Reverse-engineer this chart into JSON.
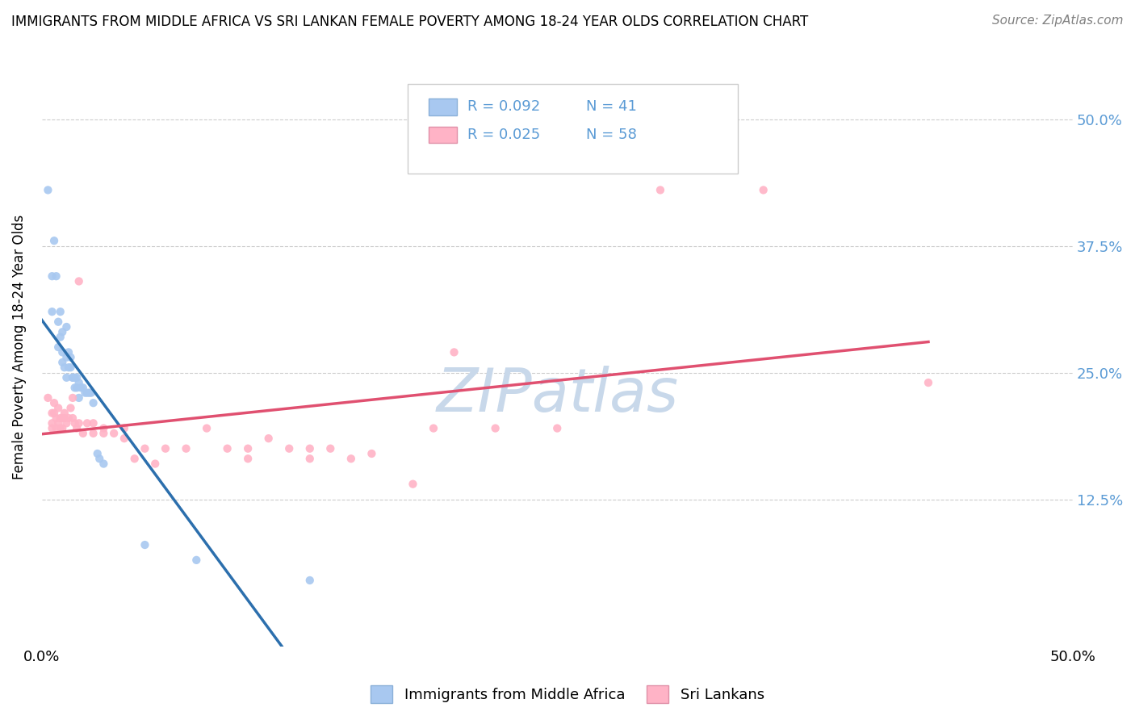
{
  "title": "IMMIGRANTS FROM MIDDLE AFRICA VS SRI LANKAN FEMALE POVERTY AMONG 18-24 YEAR OLDS CORRELATION CHART",
  "source": "Source: ZipAtlas.com",
  "ylabel": "Female Poverty Among 18-24 Year Olds",
  "xlim": [
    0.0,
    0.5
  ],
  "ylim": [
    -0.02,
    0.57
  ],
  "xtick_positions": [
    0.0,
    0.5
  ],
  "xtick_labels": [
    "0.0%",
    "50.0%"
  ],
  "ytick_values": [
    0.125,
    0.25,
    0.375,
    0.5
  ],
  "ytick_labels": [
    "12.5%",
    "25.0%",
    "37.5%",
    "50.0%"
  ],
  "right_ytick_color": "#5b9bd5",
  "color_blue": "#a8c8f0",
  "color_pink": "#ffb3c6",
  "trendline_blue_color": "#2c6fad",
  "trendline_pink_color": "#e05070",
  "trendline_dashed_color": "#a0b8cc",
  "watermark_color": "#c8d8ea",
  "background_color": "#ffffff",
  "legend_text_color": "#5b9bd5",
  "legend_r_n_color": "#333333",
  "blue_scatter": [
    [
      0.003,
      0.43
    ],
    [
      0.005,
      0.345
    ],
    [
      0.005,
      0.31
    ],
    [
      0.006,
      0.38
    ],
    [
      0.007,
      0.345
    ],
    [
      0.008,
      0.3
    ],
    [
      0.008,
      0.275
    ],
    [
      0.009,
      0.31
    ],
    [
      0.009,
      0.285
    ],
    [
      0.01,
      0.29
    ],
    [
      0.01,
      0.27
    ],
    [
      0.01,
      0.26
    ],
    [
      0.011,
      0.255
    ],
    [
      0.012,
      0.295
    ],
    [
      0.012,
      0.265
    ],
    [
      0.012,
      0.245
    ],
    [
      0.013,
      0.27
    ],
    [
      0.013,
      0.255
    ],
    [
      0.014,
      0.265
    ],
    [
      0.014,
      0.255
    ],
    [
      0.015,
      0.245
    ],
    [
      0.015,
      0.245
    ],
    [
      0.016,
      0.245
    ],
    [
      0.016,
      0.235
    ],
    [
      0.017,
      0.245
    ],
    [
      0.017,
      0.235
    ],
    [
      0.018,
      0.24
    ],
    [
      0.018,
      0.225
    ],
    [
      0.019,
      0.235
    ],
    [
      0.02,
      0.235
    ],
    [
      0.021,
      0.23
    ],
    [
      0.022,
      0.23
    ],
    [
      0.023,
      0.23
    ],
    [
      0.024,
      0.23
    ],
    [
      0.025,
      0.22
    ],
    [
      0.027,
      0.17
    ],
    [
      0.028,
      0.165
    ],
    [
      0.03,
      0.16
    ],
    [
      0.05,
      0.08
    ],
    [
      0.075,
      0.065
    ],
    [
      0.13,
      0.045
    ]
  ],
  "pink_scatter": [
    [
      0.003,
      0.225
    ],
    [
      0.005,
      0.21
    ],
    [
      0.005,
      0.2
    ],
    [
      0.005,
      0.195
    ],
    [
      0.006,
      0.22
    ],
    [
      0.006,
      0.21
    ],
    [
      0.007,
      0.205
    ],
    [
      0.007,
      0.195
    ],
    [
      0.008,
      0.215
    ],
    [
      0.008,
      0.2
    ],
    [
      0.009,
      0.205
    ],
    [
      0.009,
      0.195
    ],
    [
      0.01,
      0.205
    ],
    [
      0.01,
      0.195
    ],
    [
      0.011,
      0.205
    ],
    [
      0.011,
      0.21
    ],
    [
      0.012,
      0.2
    ],
    [
      0.013,
      0.205
    ],
    [
      0.014,
      0.215
    ],
    [
      0.015,
      0.225
    ],
    [
      0.015,
      0.205
    ],
    [
      0.016,
      0.2
    ],
    [
      0.017,
      0.195
    ],
    [
      0.018,
      0.2
    ],
    [
      0.018,
      0.34
    ],
    [
      0.02,
      0.19
    ],
    [
      0.022,
      0.2
    ],
    [
      0.025,
      0.19
    ],
    [
      0.025,
      0.2
    ],
    [
      0.03,
      0.19
    ],
    [
      0.03,
      0.195
    ],
    [
      0.035,
      0.19
    ],
    [
      0.04,
      0.195
    ],
    [
      0.04,
      0.185
    ],
    [
      0.045,
      0.165
    ],
    [
      0.05,
      0.175
    ],
    [
      0.055,
      0.16
    ],
    [
      0.06,
      0.175
    ],
    [
      0.07,
      0.175
    ],
    [
      0.08,
      0.195
    ],
    [
      0.09,
      0.175
    ],
    [
      0.1,
      0.175
    ],
    [
      0.1,
      0.165
    ],
    [
      0.11,
      0.185
    ],
    [
      0.12,
      0.175
    ],
    [
      0.13,
      0.175
    ],
    [
      0.13,
      0.165
    ],
    [
      0.14,
      0.175
    ],
    [
      0.15,
      0.165
    ],
    [
      0.16,
      0.17
    ],
    [
      0.18,
      0.14
    ],
    [
      0.19,
      0.195
    ],
    [
      0.2,
      0.27
    ],
    [
      0.22,
      0.195
    ],
    [
      0.25,
      0.195
    ],
    [
      0.3,
      0.43
    ],
    [
      0.35,
      0.43
    ],
    [
      0.43,
      0.24
    ]
  ],
  "blue_trendline_x": [
    0.003,
    0.245
  ],
  "dashed_trendline_x": [
    0.003,
    0.5
  ],
  "pink_trendline_x": [
    0.003,
    0.43
  ]
}
